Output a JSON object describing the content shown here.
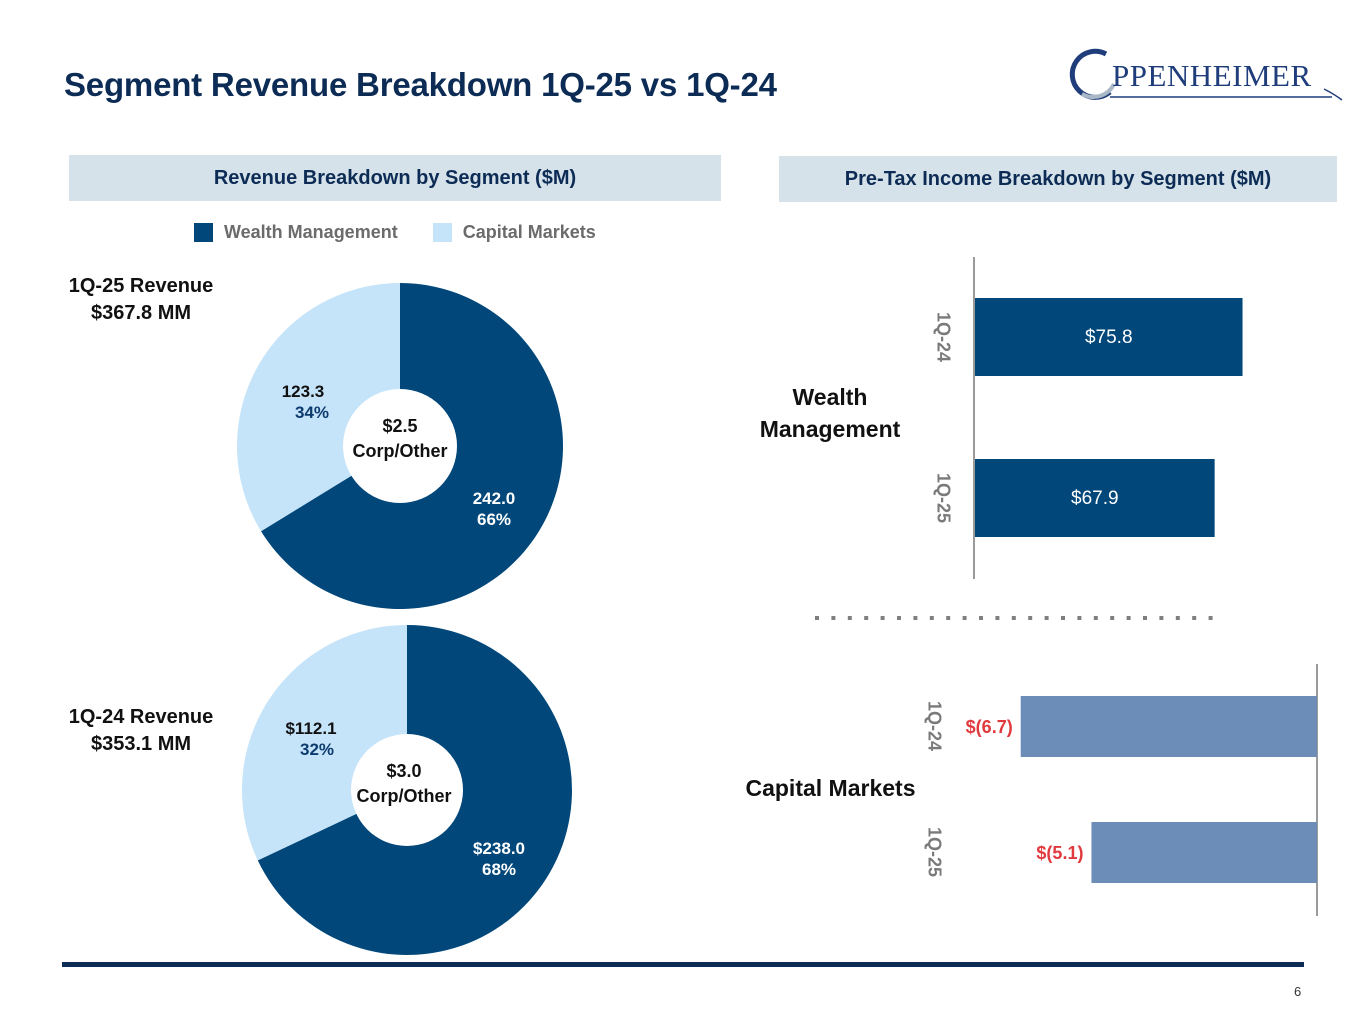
{
  "page": {
    "title": "Segment Revenue Breakdown 1Q-25 vs 1Q-24",
    "logo_letter": "O",
    "logo_text": "PPENHEIMER",
    "page_number": "6"
  },
  "colors": {
    "wealth": "#01477a",
    "capital": "#c5e3f9",
    "cm_bar": "#6b8db8",
    "negative_label": "#e03a3e",
    "title": "#0d2c55"
  },
  "revenue_panel": {
    "heading": "Revenue Breakdown by Segment ($M)",
    "legend": [
      "Wealth Management",
      "Capital Markets"
    ]
  },
  "pretax_panel": {
    "heading": "Pre-Tax Income Breakdown by Segment ($M)",
    "segments": [
      "Wealth Management",
      "Capital Markets"
    ]
  },
  "chart_data": [
    {
      "type": "pie",
      "title": "1Q-25 Revenue",
      "subtitle": "$367.8 MM",
      "categories": [
        "Wealth Management",
        "Capital Markets"
      ],
      "values": [
        242.0,
        123.3
      ],
      "percents": [
        66,
        34
      ],
      "labels": [
        "242.0",
        "123.3"
      ],
      "percent_labels": [
        "66%",
        "34%"
      ],
      "center_value": "$2.5",
      "center_label": "Corp/Other"
    },
    {
      "type": "pie",
      "title": "1Q-24 Revenue",
      "subtitle": "$353.1 MM",
      "categories": [
        "Wealth Management",
        "Capital Markets"
      ],
      "values": [
        238.0,
        112.1
      ],
      "percents": [
        68,
        32
      ],
      "labels": [
        "$238.0",
        "$112.1"
      ],
      "percent_labels": [
        "68%",
        "32%"
      ],
      "center_value": "$3.0",
      "center_label": "Corp/Other"
    },
    {
      "type": "bar",
      "orientation": "horizontal",
      "title": "Wealth Management",
      "categories": [
        "1Q-24",
        "1Q-25"
      ],
      "values": [
        75.8,
        67.9
      ],
      "labels": [
        "$75.8",
        "$67.9"
      ],
      "xlim": [
        0,
        85
      ]
    },
    {
      "type": "bar",
      "orientation": "horizontal",
      "title": "Capital Markets",
      "categories": [
        "1Q-24",
        "1Q-25"
      ],
      "values": [
        -6.7,
        -5.1
      ],
      "labels": [
        "$(6.7)",
        "$(5.1)"
      ],
      "xlim": [
        -9,
        0
      ]
    }
  ]
}
